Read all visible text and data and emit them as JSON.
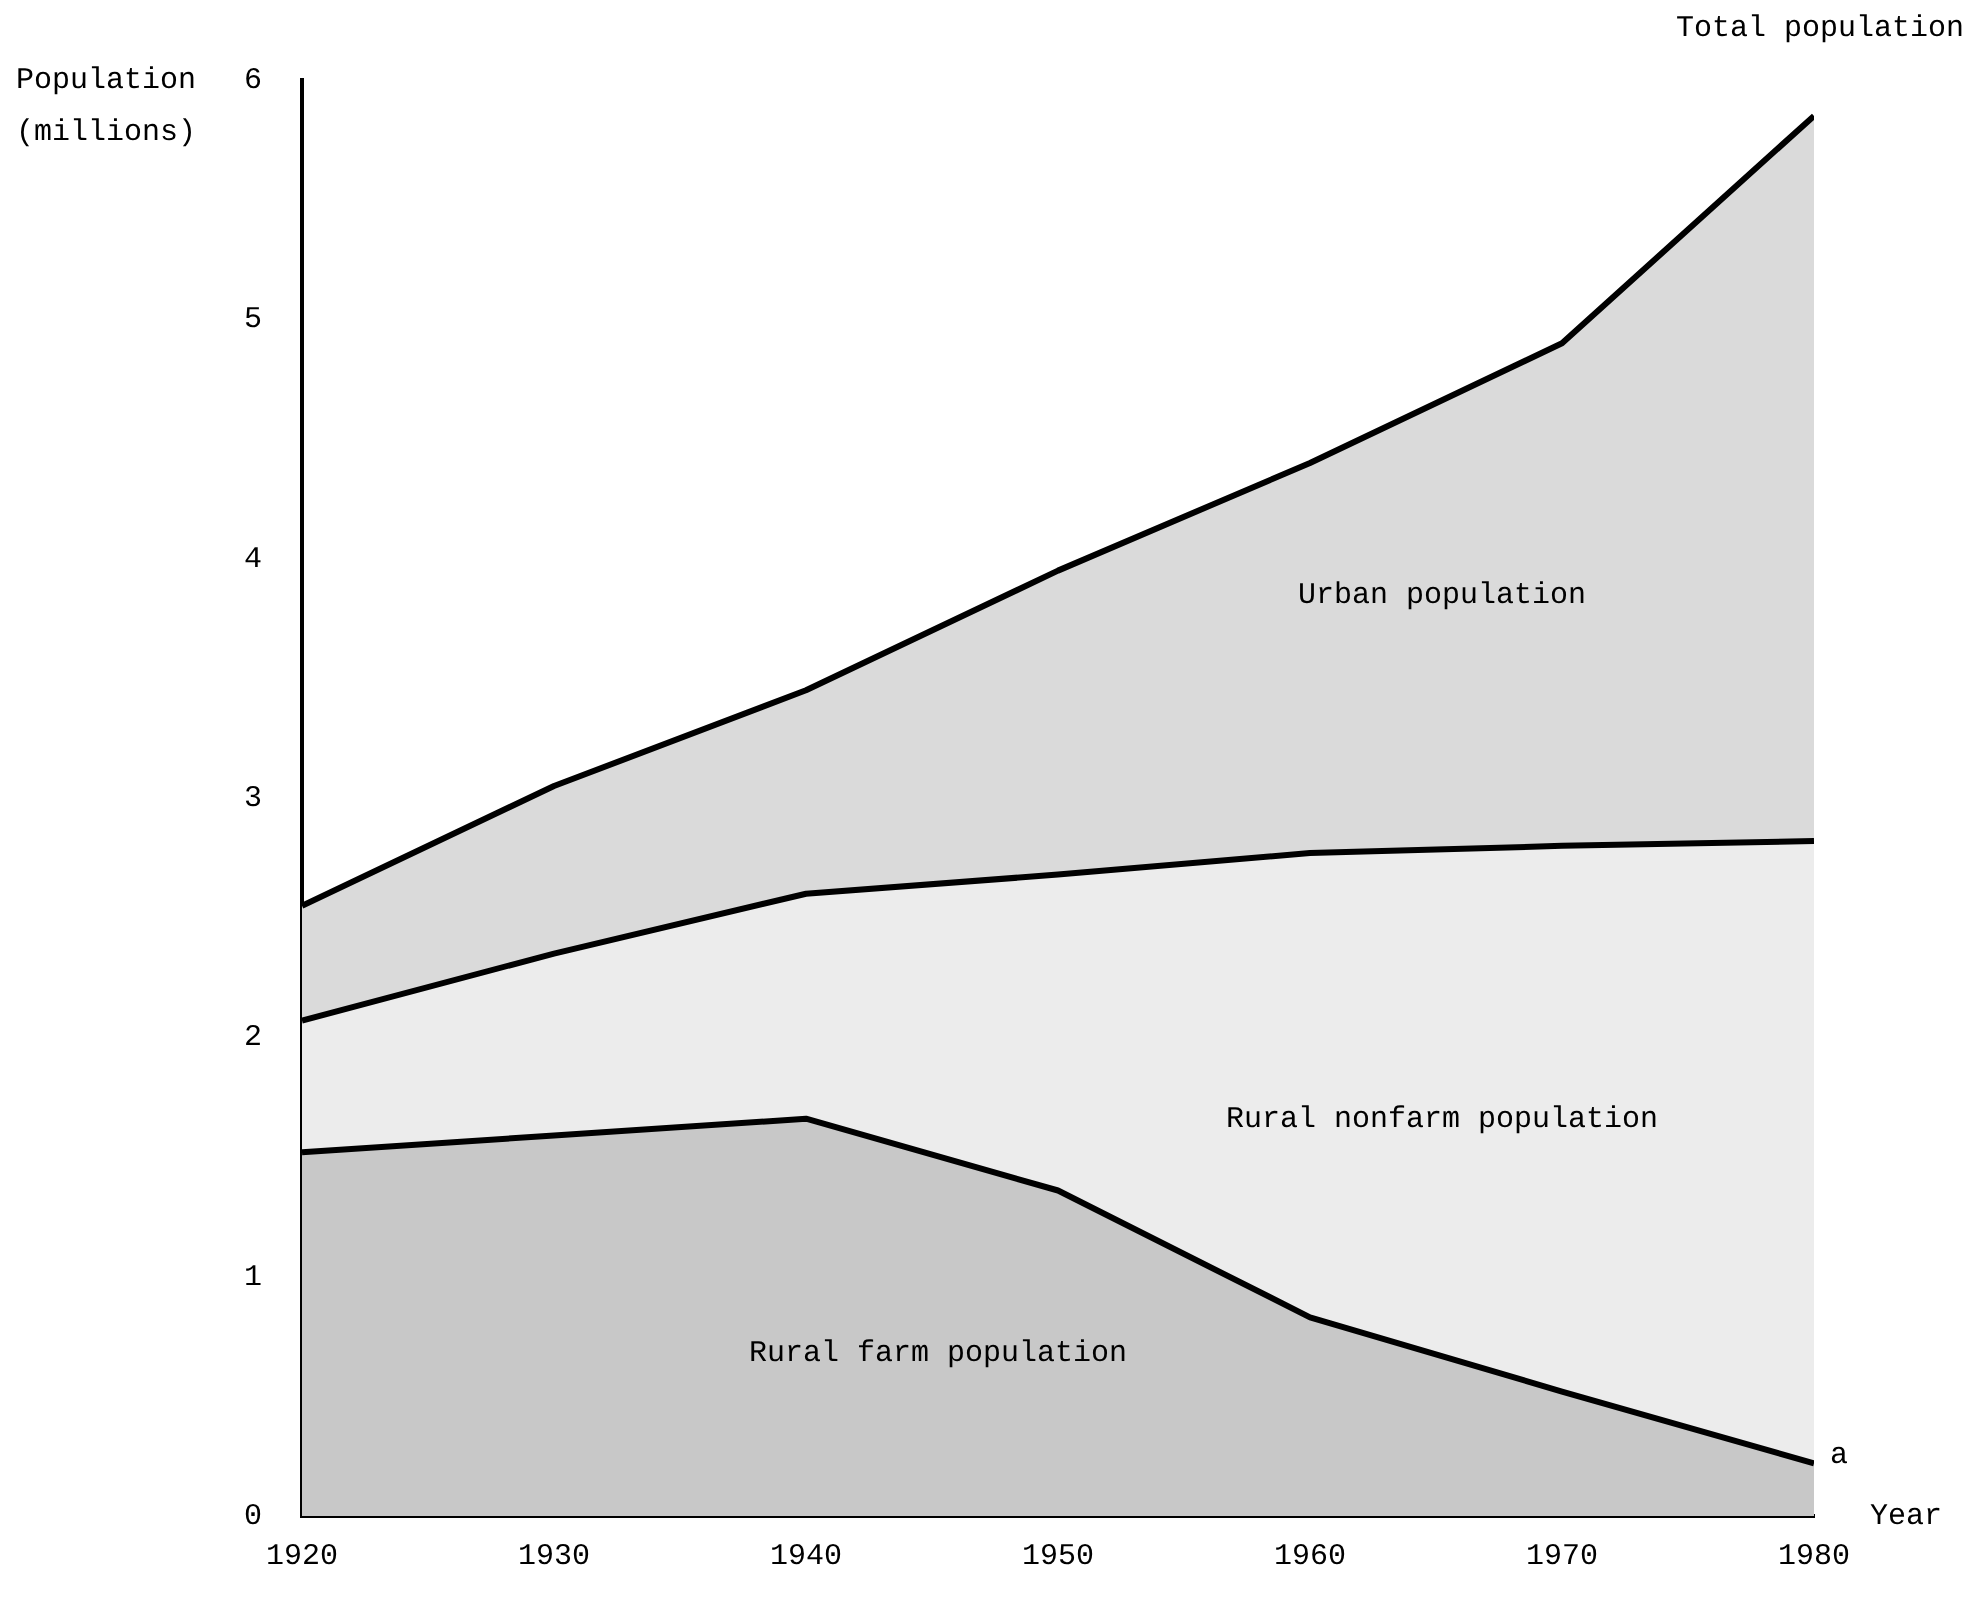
{
  "chart_data": {
    "type": "area",
    "stacked": true,
    "xlabel": "Year",
    "ylabel": "Population (millions)",
    "x": [
      1920,
      1930,
      1940,
      1950,
      1960,
      1970,
      1980
    ],
    "series": [
      {
        "name": "Rural farm population",
        "color": "#c8c8c8",
        "values": [
          1.52,
          1.59,
          1.66,
          1.36,
          0.83,
          0.52,
          0.22
        ]
      },
      {
        "name": "Rural nonfarm population",
        "color": "#ececec",
        "values": [
          0.55,
          0.76,
          0.94,
          1.32,
          1.94,
          2.28,
          2.6
        ]
      },
      {
        "name": "Urban population",
        "color": "#dadada",
        "values": [
          0.48,
          0.7,
          0.85,
          1.27,
          1.63,
          2.1,
          3.03
        ]
      }
    ],
    "xlim": [
      1920,
      1980
    ],
    "xticks": [
      1920,
      1930,
      1940,
      1950,
      1960,
      1970,
      1980
    ],
    "ylim": [
      0,
      6
    ],
    "yticks": [
      0,
      1,
      2,
      3,
      4,
      5,
      6
    ],
    "grid": false,
    "legend": false,
    "annotations": [
      "Total population",
      {
        "text": "a",
        "x": 1980,
        "y": 0.22
      }
    ]
  }
}
